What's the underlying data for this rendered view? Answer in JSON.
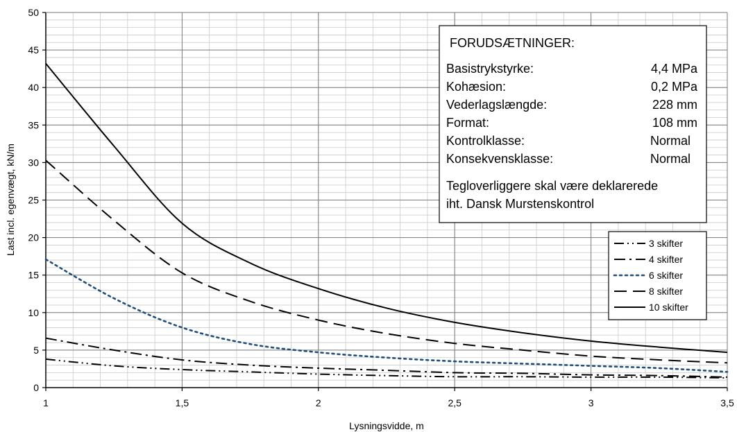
{
  "chart_data": {
    "type": "line",
    "title": "",
    "xlabel": "Lysningsvidde, m",
    "ylabel": "Last incl. egenvægt, kN/m",
    "xlim": [
      1,
      3.5
    ],
    "ylim": [
      0,
      50
    ],
    "xticks": [
      "1",
      "1,5",
      "2",
      "2,5",
      "3",
      "3,5"
    ],
    "yticks": [
      "0",
      "5",
      "10",
      "15",
      "20",
      "25",
      "30",
      "35",
      "40",
      "45",
      "50"
    ],
    "grid": true,
    "legend_position": "right",
    "series": [
      {
        "name": "3 skifter",
        "style": "dash-dot-dot",
        "color": "#000000",
        "x": [
          1,
          1.25,
          1.5,
          1.75,
          2,
          2.25,
          2.5,
          2.75,
          3,
          3.25,
          3.5
        ],
        "y": [
          3.8,
          2.9,
          2.4,
          2.1,
          1.8,
          1.6,
          1.45,
          1.45,
          1.4,
          1.4,
          1.3
        ]
      },
      {
        "name": "4 skifter",
        "style": "dash-dot",
        "color": "#000000",
        "x": [
          1,
          1.25,
          1.5,
          1.75,
          2,
          2.25,
          2.5,
          2.75,
          3,
          3.25,
          3.5
        ],
        "y": [
          6.6,
          5.0,
          3.7,
          3.0,
          2.6,
          2.3,
          2.0,
          1.9,
          1.7,
          1.6,
          1.4
        ]
      },
      {
        "name": "6 skifter",
        "style": "dotted",
        "color": "#1f4e79",
        "x": [
          1,
          1.25,
          1.5,
          1.75,
          2,
          2.25,
          2.5,
          2.75,
          3,
          3.25,
          3.5
        ],
        "y": [
          17.1,
          11.9,
          8.0,
          5.8,
          4.7,
          4.0,
          3.5,
          3.2,
          2.9,
          2.6,
          2.1
        ]
      },
      {
        "name": "8 skifter",
        "style": "dashed",
        "color": "#000000",
        "x": [
          1,
          1.25,
          1.5,
          1.75,
          2,
          2.25,
          2.5,
          2.75,
          3,
          3.25,
          3.5
        ],
        "y": [
          30.3,
          22.3,
          15.3,
          11.5,
          9.0,
          7.2,
          5.9,
          5.0,
          4.2,
          3.7,
          3.3
        ]
      },
      {
        "name": "10 skifter",
        "style": "solid",
        "color": "#000000",
        "x": [
          1,
          1.25,
          1.5,
          1.75,
          2,
          2.25,
          2.5,
          2.75,
          3,
          3.25,
          3.5
        ],
        "y": [
          43.2,
          32.2,
          21.9,
          16.6,
          13.2,
          10.6,
          8.7,
          7.3,
          6.2,
          5.4,
          4.7
        ]
      }
    ]
  },
  "annotation": {
    "heading": "FORUDSÆTNINGER:",
    "rows": [
      {
        "label": "Basistrykstyrke:",
        "value": "4,4 MPa"
      },
      {
        "label": "Kohæsion:",
        "value": "0,2 MPa"
      },
      {
        "label": "Vederlagslængde:",
        "value": "228 mm"
      },
      {
        "label": "Format:",
        "value": "108 mm"
      },
      {
        "label": "Kontrolklasse:",
        "value": "Normal"
      },
      {
        "label": "Konsekvensklasse:",
        "value": "Normal"
      }
    ],
    "note_lines": [
      "Tegloverliggere skal være deklarerede",
      "iht. Dansk Murstenskontrol"
    ]
  }
}
